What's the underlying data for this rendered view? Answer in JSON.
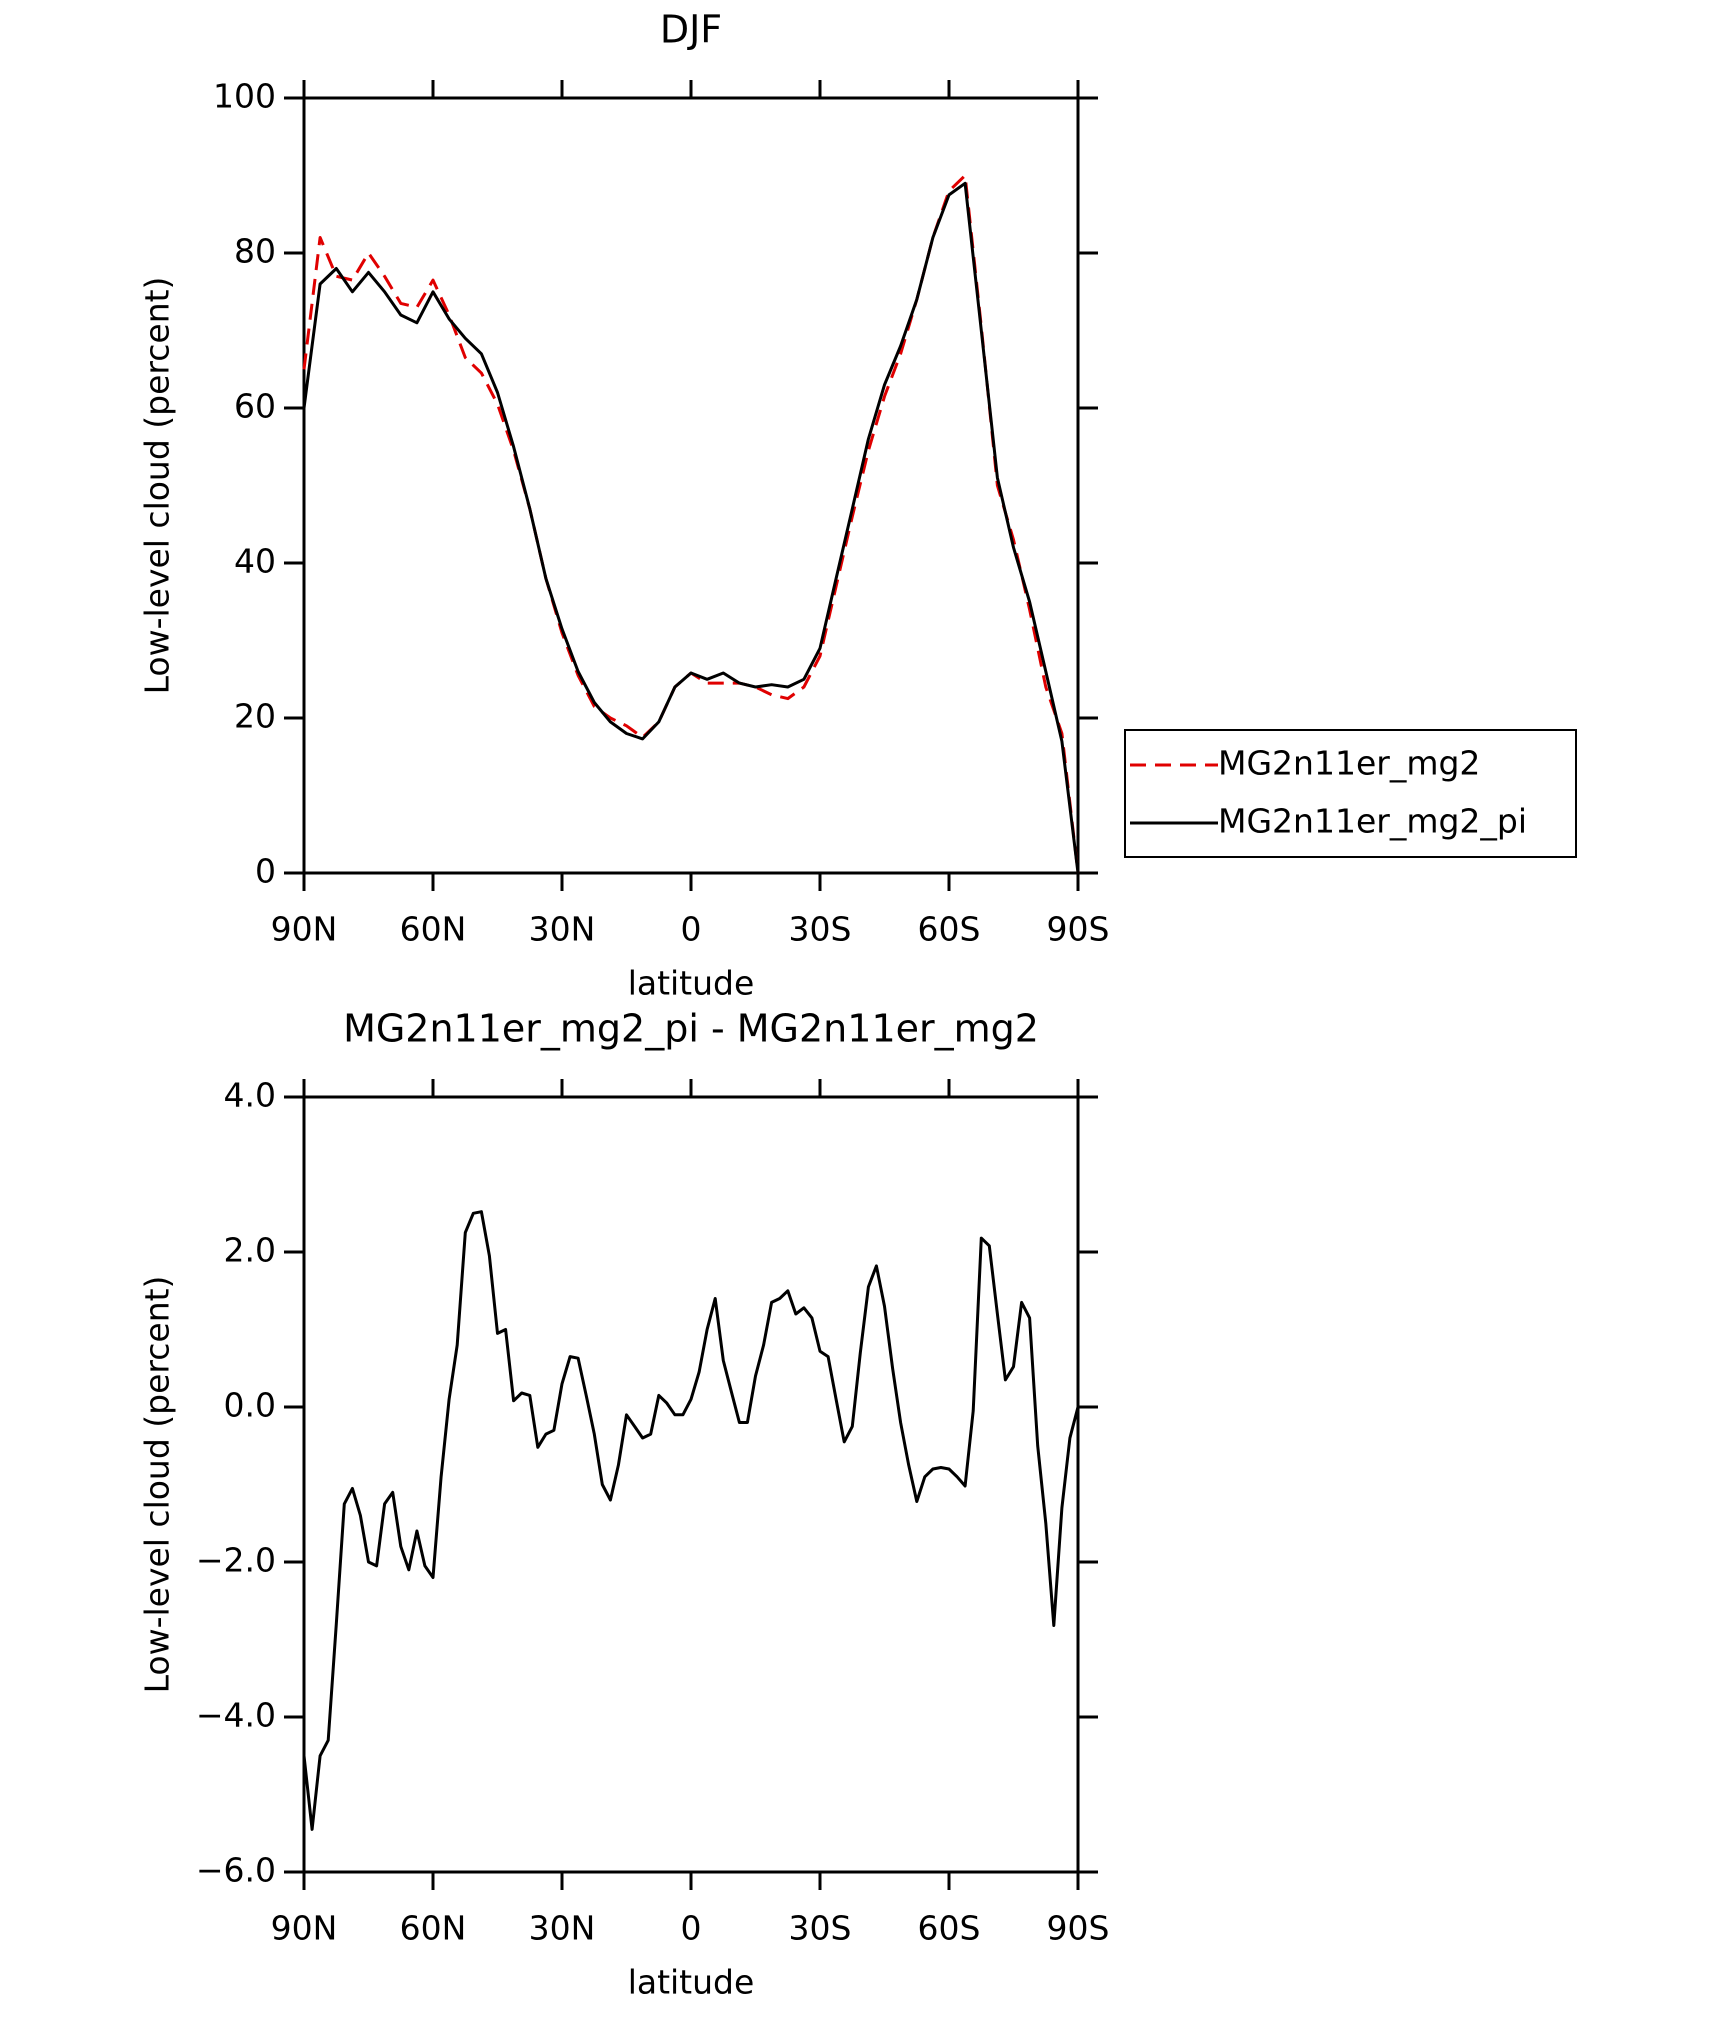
{
  "chart_data": [
    {
      "type": "line",
      "title": "DJF",
      "x_label": "latitude",
      "y_label": "Low-level cloud (percent)",
      "xlim": [
        90,
        -90
      ],
      "ylim": [
        0,
        100
      ],
      "xticks": [
        {
          "value": 90,
          "label": "90N"
        },
        {
          "value": 60,
          "label": "60N"
        },
        {
          "value": 30,
          "label": "30N"
        },
        0,
        {
          "value": -30,
          "label": "30S"
        },
        {
          "value": -60,
          "label": "60S"
        },
        {
          "value": -90,
          "label": "90S"
        }
      ],
      "yticks": [
        0,
        20,
        40,
        60,
        80,
        100
      ],
      "legend": "outside-right",
      "x": [
        90,
        86.25,
        82.5,
        78.75,
        75,
        71.25,
        67.5,
        63.75,
        60,
        56.25,
        52.5,
        48.75,
        45,
        41.25,
        37.5,
        33.75,
        30,
        26.25,
        22.5,
        18.75,
        15,
        11.25,
        7.5,
        3.75,
        0,
        -3.75,
        -7.5,
        -11.25,
        -15,
        -18.75,
        -22.5,
        -26.25,
        -30,
        -33.75,
        -37.5,
        -41.25,
        -45,
        -48.75,
        -52.5,
        -56.25,
        -60,
        -63.75,
        -67.5,
        -71.25,
        -75,
        -78.75,
        -82.5,
        -86.25,
        -90
      ],
      "series": [
        {
          "name": "MG2n11er_mg2",
          "color": "#e00000",
          "dash": true,
          "values": [
            65,
            82,
            77,
            76.5,
            80,
            77,
            73.5,
            73,
            76.5,
            72,
            66.5,
            64.5,
            60.5,
            54.5,
            47,
            38,
            31,
            25.5,
            21.5,
            20,
            19,
            17.5,
            19.5,
            24,
            25.8,
            24.5,
            24.5,
            24.5,
            24,
            23,
            22.5,
            24,
            28,
            37,
            46,
            54.5,
            61.5,
            67,
            74,
            82,
            88,
            90,
            70.5,
            50,
            43,
            34,
            24,
            18,
            0
          ]
        },
        {
          "name": "MG2n11er_mg2_pi",
          "color": "#000000",
          "dash": false,
          "values": [
            60,
            76,
            78,
            75,
            77.5,
            75,
            72,
            71,
            75,
            71.5,
            69,
            67,
            62,
            55,
            47,
            38,
            31.5,
            26,
            22,
            19.5,
            18,
            17.3,
            19.5,
            24,
            25.8,
            25,
            25.8,
            24.5,
            24,
            24.3,
            24,
            25,
            29,
            38,
            47,
            56,
            63,
            68,
            74,
            82,
            87.5,
            89,
            70,
            51,
            42,
            35,
            26,
            17,
            0
          ]
        }
      ]
    },
    {
      "type": "line",
      "title": "MG2n11er_mg2_pi - MG2n11er_mg2",
      "x_label": "latitude",
      "y_label": "Low-level cloud (percent)",
      "xlim": [
        90,
        -90
      ],
      "ylim": [
        -6,
        4
      ],
      "xticks": [
        {
          "value": 90,
          "label": "90N"
        },
        {
          "value": 60,
          "label": "60N"
        },
        {
          "value": 30,
          "label": "30N"
        },
        0,
        {
          "value": -30,
          "label": "30S"
        },
        {
          "value": -60,
          "label": "60S"
        },
        {
          "value": -90,
          "label": "90S"
        }
      ],
      "yticks": [
        {
          "value": -6,
          "label": "−6.0"
        },
        {
          "value": -4,
          "label": "−4.0"
        },
        {
          "value": -2,
          "label": "−2.0"
        },
        {
          "value": 0,
          "label": "0.0"
        },
        {
          "value": 2,
          "label": "2.0"
        },
        {
          "value": 4,
          "label": "4.0"
        }
      ],
      "x": [
        90,
        88.125,
        86.25,
        84.375,
        82.5,
        80.625,
        78.75,
        76.875,
        75,
        73.125,
        71.25,
        69.375,
        67.5,
        65.625,
        63.75,
        61.875,
        60,
        58.125,
        56.25,
        54.375,
        52.5,
        50.625,
        48.75,
        46.875,
        45,
        43.125,
        41.25,
        39.375,
        37.5,
        35.625,
        33.75,
        31.875,
        30,
        28.125,
        26.25,
        24.375,
        22.5,
        20.625,
        18.75,
        16.875,
        15,
        13.125,
        11.25,
        9.375,
        7.5,
        5.625,
        3.75,
        1.875,
        0,
        -1.875,
        -3.75,
        -5.625,
        -7.5,
        -9.375,
        -11.25,
        -13.125,
        -15,
        -16.875,
        -18.75,
        -20.625,
        -22.5,
        -24.375,
        -26.25,
        -28.125,
        -30,
        -31.875,
        -33.75,
        -35.625,
        -37.5,
        -39.375,
        -41.25,
        -43.125,
        -45,
        -46.875,
        -48.75,
        -50.625,
        -52.5,
        -54.375,
        -56.25,
        -58.125,
        -60,
        -61.875,
        -63.75,
        -65.625,
        -67.5,
        -69.375,
        -71.25,
        -73.125,
        -75,
        -76.875,
        -78.75,
        -80.625,
        -82.5,
        -84.375,
        -86.25,
        -88.125,
        -90
      ],
      "series": [
        {
          "color": "#000000",
          "dash": false,
          "values": [
            -4.5,
            -5.45,
            -4.5,
            -4.3,
            -2.8,
            -1.25,
            -1.05,
            -1.4,
            -2.0,
            -2.05,
            -1.25,
            -1.1,
            -1.8,
            -2.1,
            -1.6,
            -2.05,
            -2.2,
            -0.9,
            0.1,
            0.8,
            2.25,
            2.5,
            2.52,
            1.95,
            0.95,
            1.0,
            0.08,
            0.18,
            0.15,
            -0.52,
            -0.35,
            -0.3,
            0.3,
            0.65,
            0.63,
            0.15,
            -0.35,
            -1.0,
            -1.2,
            -0.75,
            -0.1,
            -0.25,
            -0.4,
            -0.35,
            0.15,
            0.05,
            -0.1,
            -0.1,
            0.1,
            0.45,
            1.0,
            1.4,
            0.6,
            0.2,
            -0.2,
            -0.2,
            0.4,
            0.8,
            1.35,
            1.4,
            1.5,
            1.2,
            1.28,
            1.15,
            0.72,
            0.65,
            0.1,
            -0.45,
            -0.25,
            0.7,
            1.55,
            1.82,
            1.3,
            0.5,
            -0.2,
            -0.75,
            -1.22,
            -0.9,
            -0.8,
            -0.78,
            -0.8,
            -0.9,
            -1.02,
            -0.05,
            2.18,
            2.08,
            1.2,
            0.35,
            0.52,
            1.35,
            1.15,
            -0.5,
            -1.5,
            -2.82,
            -1.3,
            -0.4,
            0
          ]
        }
      ]
    }
  ]
}
